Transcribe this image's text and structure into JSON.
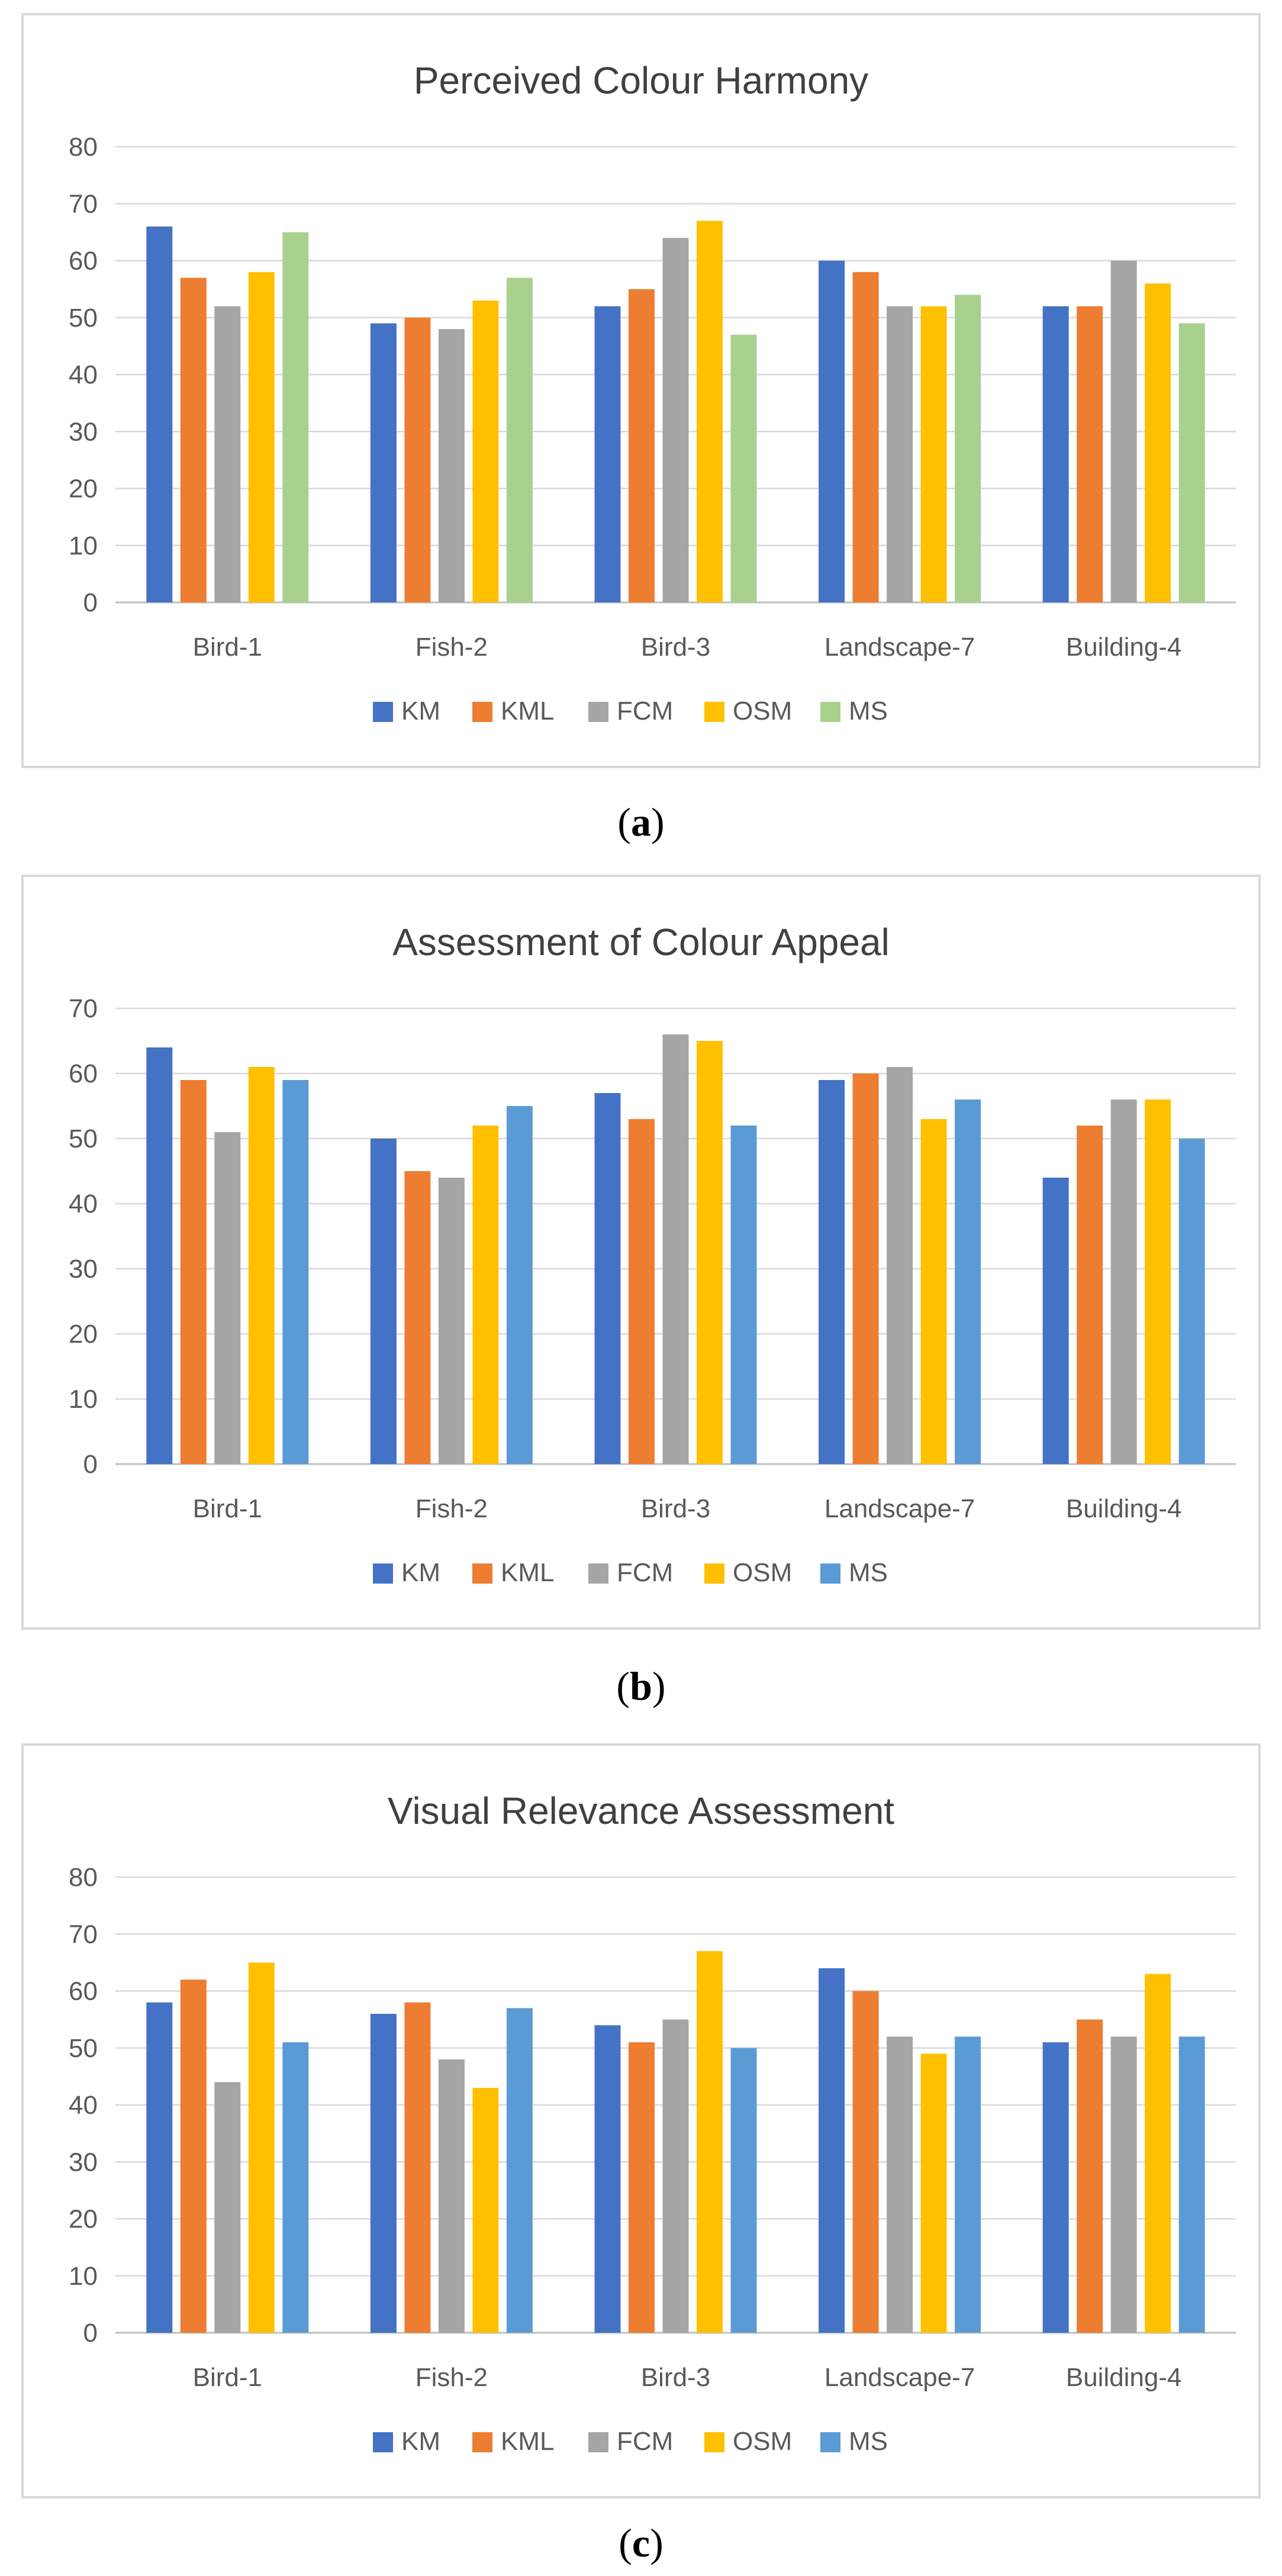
{
  "chart_data": [
    {
      "type": "bar",
      "title": "Perceived Colour Harmony",
      "caption_label": "a",
      "categories": [
        "Bird-1",
        "Fish-2",
        "Bird-3",
        "Landscape-7",
        "Building-4"
      ],
      "ylim": [
        0,
        80
      ],
      "yticks": [
        0,
        10,
        20,
        30,
        40,
        50,
        60,
        70,
        80
      ],
      "grid": true,
      "legend": "bottom",
      "series": [
        {
          "name": "KM",
          "color": "#4472c4",
          "values": [
            66,
            49,
            52,
            60,
            52
          ]
        },
        {
          "name": "KML",
          "color": "#ed7d31",
          "values": [
            57,
            50,
            55,
            58,
            52
          ]
        },
        {
          "name": "FCM",
          "color": "#a5a5a5",
          "values": [
            52,
            48,
            64,
            52,
            60
          ]
        },
        {
          "name": "OSM",
          "color": "#ffc000",
          "values": [
            58,
            53,
            67,
            52,
            56
          ]
        },
        {
          "name": "MS",
          "color": "#a9d18e",
          "values": [
            65,
            57,
            47,
            54,
            49
          ]
        }
      ]
    },
    {
      "type": "bar",
      "title": "Assessment of Colour Appeal",
      "caption_label": "b",
      "categories": [
        "Bird-1",
        "Fish-2",
        "Bird-3",
        "Landscape-7",
        "Building-4"
      ],
      "ylim": [
        0,
        70
      ],
      "yticks": [
        0,
        10,
        20,
        30,
        40,
        50,
        60,
        70
      ],
      "grid": true,
      "legend": "bottom",
      "series": [
        {
          "name": "KM",
          "color": "#4472c4",
          "values": [
            64,
            50,
            57,
            59,
            44
          ]
        },
        {
          "name": "KML",
          "color": "#ed7d31",
          "values": [
            59,
            45,
            53,
            60,
            52
          ]
        },
        {
          "name": "FCM",
          "color": "#a5a5a5",
          "values": [
            51,
            44,
            66,
            61,
            56
          ]
        },
        {
          "name": "OSM",
          "color": "#ffc000",
          "values": [
            61,
            52,
            65,
            53,
            56
          ]
        },
        {
          "name": "MS",
          "color": "#5b9bd5",
          "values": [
            59,
            55,
            52,
            56,
            50
          ]
        }
      ]
    },
    {
      "type": "bar",
      "title": "Visual Relevance Assessment",
      "caption_label": "c",
      "categories": [
        "Bird-1",
        "Fish-2",
        "Bird-3",
        "Landscape-7",
        "Building-4"
      ],
      "ylim": [
        0,
        80
      ],
      "yticks": [
        0,
        10,
        20,
        30,
        40,
        50,
        60,
        70,
        80
      ],
      "grid": true,
      "legend": "bottom",
      "series": [
        {
          "name": "KM",
          "color": "#4472c4",
          "values": [
            58,
            56,
            54,
            64,
            51
          ]
        },
        {
          "name": "KML",
          "color": "#ed7d31",
          "values": [
            62,
            58,
            51,
            60,
            55
          ]
        },
        {
          "name": "FCM",
          "color": "#a5a5a5",
          "values": [
            44,
            48,
            55,
            52,
            52
          ]
        },
        {
          "name": "OSM",
          "color": "#ffc000",
          "values": [
            65,
            43,
            67,
            49,
            63
          ]
        },
        {
          "name": "MS",
          "color": "#5b9bd5",
          "values": [
            51,
            57,
            50,
            52,
            52
          ]
        }
      ]
    }
  ]
}
